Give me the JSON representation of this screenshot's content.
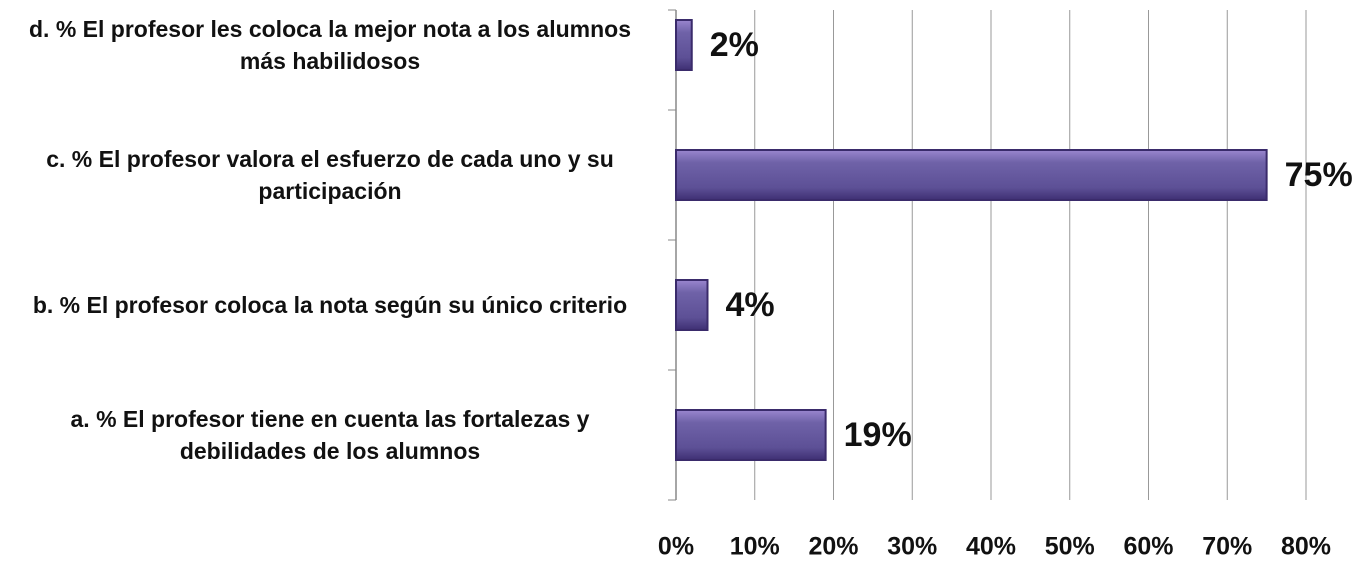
{
  "chart_data": {
    "type": "hbar",
    "categories": [
      "d. % El profesor les coloca la mejor nota a los alumnos más habilidosos",
      "c. % El profesor valora el esfuerzo de cada uno y su participación",
      "b. % El profesor coloca la nota según su único criterio",
      "a.  % El profesor tiene en cuenta las fortalezas y debilidades de los alumnos"
    ],
    "values": [
      2,
      75,
      4,
      19
    ],
    "value_labels": [
      "2%",
      "75%",
      "4%",
      "19%"
    ],
    "color": "#6b5ba3",
    "xlim": [
      0,
      80
    ],
    "xticks": [
      {
        "value": 0,
        "label": "0%"
      },
      {
        "value": 10,
        "label": "10%"
      },
      {
        "value": 20,
        "label": "20%"
      },
      {
        "value": 30,
        "label": "30%"
      },
      {
        "value": 40,
        "label": "40%"
      },
      {
        "value": 50,
        "label": "50%"
      },
      {
        "value": 60,
        "label": "60%"
      },
      {
        "value": 70,
        "label": "70%"
      },
      {
        "value": 80,
        "label": "80%"
      }
    ],
    "grid": true
  }
}
